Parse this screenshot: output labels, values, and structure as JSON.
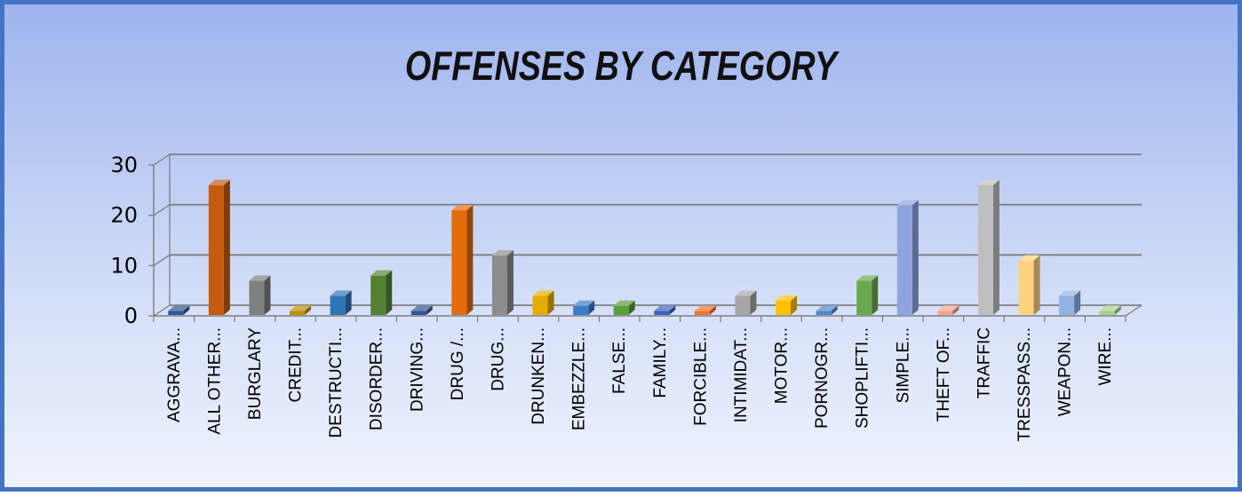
{
  "chart_data": {
    "type": "bar",
    "title": "OFFENSES BY CATEGORY",
    "xlabel": "",
    "ylabel": "",
    "ylim": [
      0,
      30
    ],
    "yticks": [
      "0",
      "10",
      "20",
      "30"
    ],
    "categories": [
      "AGGRAVA...",
      "ALL OTHER...",
      "BURGLARY",
      "CREDIT...",
      "DESTRUCTI...",
      "DISORDER...",
      "DRIVING...",
      "DRUG /...",
      "DRUG...",
      "DRUNKEN...",
      "EMBEZZLE...",
      "FALSE...",
      "FAMILY...",
      "FORCIBLE...",
      "INTIMIDAT...",
      "MOTOR...",
      "PORNOGR...",
      "SHOPLIFTI...",
      "SIMPLE...",
      "THEFT OF...",
      "TRAFFIC",
      "TRESSPASS...",
      "WEAPON...",
      "WIRE..."
    ],
    "values": [
      1,
      26,
      7,
      1,
      4,
      8,
      1,
      21,
      12,
      4,
      2,
      2,
      1,
      1,
      4,
      3,
      1,
      7,
      22,
      1,
      26,
      11,
      4,
      1
    ],
    "colors": [
      "#2f5597",
      "#c55a11",
      "#7f7f7f",
      "#bf9000",
      "#2e75b6",
      "#548235",
      "#2f5597",
      "#e46c0a",
      "#8c8c8c",
      "#e6ac00",
      "#3d7cc9",
      "#5a9e3a",
      "#3a62c0",
      "#f07530",
      "#a6a6a6",
      "#ffc000",
      "#4f87c9",
      "#6aa84f",
      "#8ea4dc",
      "#f4a58a",
      "#bfbfbf",
      "#ffd27f",
      "#8fb4e3",
      "#a9d18e"
    ],
    "grid": true,
    "legend": "none"
  }
}
